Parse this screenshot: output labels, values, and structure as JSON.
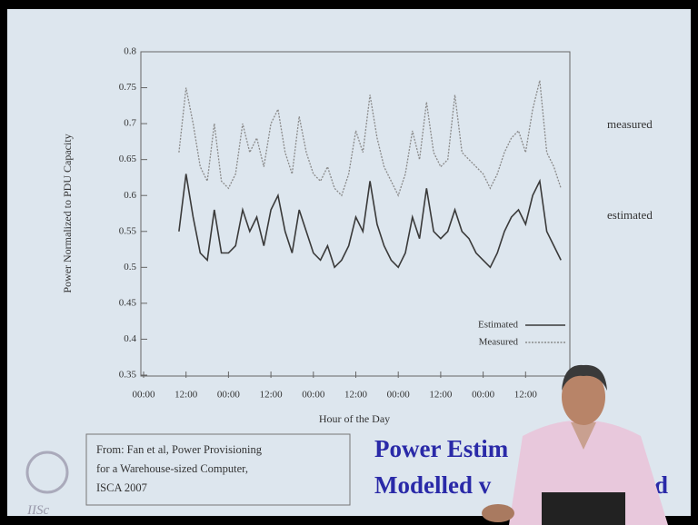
{
  "chart_data": {
    "type": "line",
    "ylabel": "Power Normalized to PDU Capacity",
    "xlabel": "Hour of the Day",
    "xlim": [
      0,
      120
    ],
    "xticks": [
      {
        "value": 0,
        "label": "00:00"
      },
      {
        "value": 12,
        "label": "12:00"
      },
      {
        "value": 24,
        "label": "00:00"
      },
      {
        "value": 36,
        "label": "12:00"
      },
      {
        "value": 48,
        "label": "00:00"
      },
      {
        "value": 60,
        "label": "12:00"
      },
      {
        "value": 72,
        "label": "00:00"
      },
      {
        "value": 84,
        "label": "12:00"
      },
      {
        "value": 96,
        "label": "00:00"
      },
      {
        "value": 108,
        "label": "12:00"
      }
    ],
    "ylim": [
      0.35,
      0.8
    ],
    "yticks": [
      0.35,
      0.4,
      0.45,
      0.5,
      0.55,
      0.6,
      0.65,
      0.7,
      0.75,
      0.8
    ],
    "x": [
      10,
      12,
      14,
      16,
      18,
      20,
      22,
      24,
      26,
      28,
      30,
      32,
      34,
      36,
      38,
      40,
      42,
      44,
      46,
      48,
      50,
      52,
      54,
      56,
      58,
      60,
      62,
      64,
      66,
      68,
      70,
      72,
      74,
      76,
      78,
      80,
      82,
      84,
      86,
      88,
      90,
      92,
      94,
      96,
      98,
      100,
      102,
      104,
      106,
      108,
      110,
      112,
      114,
      116,
      118
    ],
    "series": [
      {
        "name": "Estimated",
        "color": "#3a3a3a",
        "values": [
          0.55,
          0.63,
          0.57,
          0.52,
          0.51,
          0.58,
          0.52,
          0.52,
          0.53,
          0.58,
          0.55,
          0.57,
          0.53,
          0.58,
          0.6,
          0.55,
          0.52,
          0.58,
          0.55,
          0.52,
          0.51,
          0.53,
          0.5,
          0.51,
          0.53,
          0.57,
          0.55,
          0.62,
          0.56,
          0.53,
          0.51,
          0.5,
          0.52,
          0.57,
          0.54,
          0.61,
          0.55,
          0.54,
          0.55,
          0.58,
          0.55,
          0.54,
          0.52,
          0.51,
          0.5,
          0.52,
          0.55,
          0.57,
          0.58,
          0.56,
          0.6,
          0.62,
          0.55,
          0.53,
          0.51
        ]
      },
      {
        "name": "Measured",
        "color": "#8a8a8a",
        "values": [
          0.66,
          0.75,
          0.7,
          0.64,
          0.62,
          0.7,
          0.62,
          0.61,
          0.63,
          0.7,
          0.66,
          0.68,
          0.64,
          0.7,
          0.72,
          0.66,
          0.63,
          0.71,
          0.66,
          0.63,
          0.62,
          0.64,
          0.61,
          0.6,
          0.63,
          0.69,
          0.66,
          0.74,
          0.68,
          0.64,
          0.62,
          0.6,
          0.63,
          0.69,
          0.65,
          0.73,
          0.66,
          0.64,
          0.65,
          0.74,
          0.66,
          0.65,
          0.64,
          0.63,
          0.61,
          0.63,
          0.66,
          0.68,
          0.69,
          0.66,
          0.72,
          0.76,
          0.66,
          0.64,
          0.61
        ]
      }
    ],
    "annotations": [
      "measured",
      "estimated"
    ]
  },
  "slide": {
    "citation": [
      "From: Fan et al, Power Provisioning",
      "for a Warehouse-sized Computer,",
      "ISCA 2007"
    ],
    "title": [
      "Power Estim",
      "Modelled v",
      "d"
    ],
    "logo": "IISc"
  }
}
